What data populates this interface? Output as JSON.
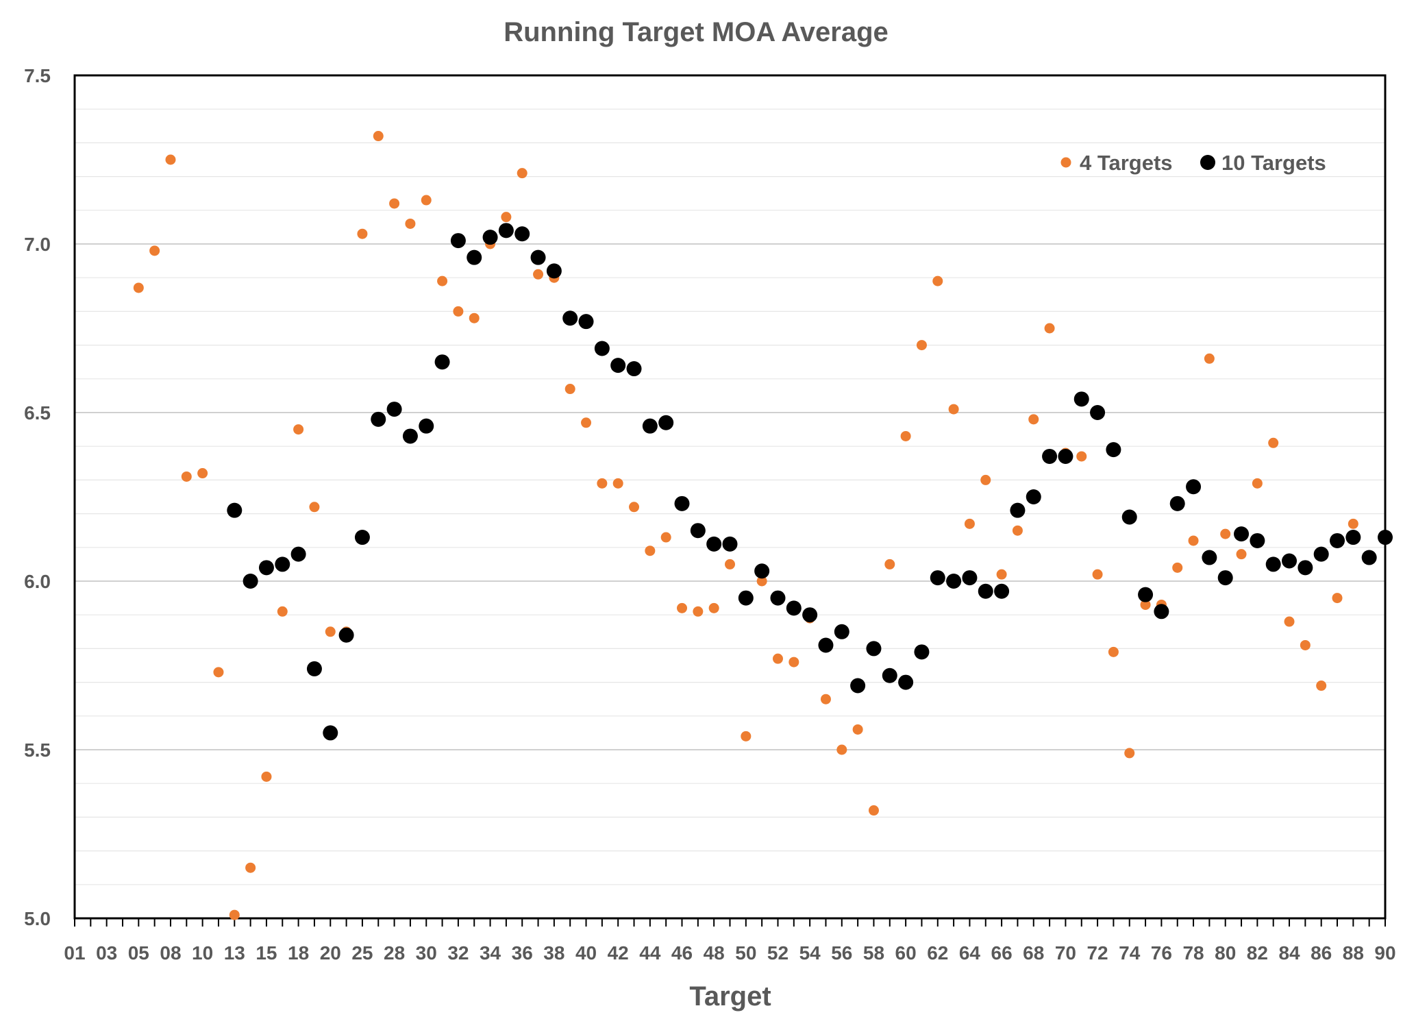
{
  "chart_data": {
    "type": "scatter",
    "title": "Running Target MOA Average",
    "xlabel": "Target",
    "ylabel": "",
    "ylim": [
      5.0,
      7.5
    ],
    "y_ticks": [
      "5.0",
      "5.5",
      "6.0",
      "6.5",
      "7.0",
      "7.5"
    ],
    "x_ticks": [
      "01",
      "03",
      "05",
      "08",
      "10",
      "13",
      "15",
      "18",
      "20",
      "25",
      "28",
      "30",
      "32",
      "34",
      "36",
      "38",
      "40",
      "42",
      "44",
      "46",
      "48",
      "50",
      "52",
      "54",
      "56",
      "58",
      "60",
      "62",
      "64",
      "66",
      "68",
      "70",
      "72",
      "74",
      "76",
      "78",
      "80",
      "82",
      "84",
      "86",
      "88",
      "90"
    ],
    "grid": "horizontal minor",
    "legend": "top-right",
    "series": [
      {
        "name": "4 Targets",
        "color": "#ED7D31",
        "points": [
          [
            4,
            6.87
          ],
          [
            5,
            6.98
          ],
          [
            6,
            7.25
          ],
          [
            7,
            6.31
          ],
          [
            8,
            6.32
          ],
          [
            9,
            5.73
          ],
          [
            10,
            5.01
          ],
          [
            11,
            5.15
          ],
          [
            12,
            5.42
          ],
          [
            13,
            5.91
          ],
          [
            14,
            6.45
          ],
          [
            15,
            6.22
          ],
          [
            16,
            5.85
          ],
          [
            17,
            5.85
          ],
          [
            18,
            7.03
          ],
          [
            19,
            7.32
          ],
          [
            20,
            7.12
          ],
          [
            21,
            7.06
          ],
          [
            22,
            7.13
          ],
          [
            23,
            6.89
          ],
          [
            24,
            6.8
          ],
          [
            25,
            6.78
          ],
          [
            26,
            7.0
          ],
          [
            27,
            7.08
          ],
          [
            28,
            7.21
          ],
          [
            29,
            6.91
          ],
          [
            30,
            6.9
          ],
          [
            31,
            6.57
          ],
          [
            32,
            6.47
          ],
          [
            33,
            6.29
          ],
          [
            34,
            6.29
          ],
          [
            35,
            6.22
          ],
          [
            36,
            6.09
          ],
          [
            37,
            6.13
          ],
          [
            38,
            5.92
          ],
          [
            39,
            5.91
          ],
          [
            40,
            5.92
          ],
          [
            41,
            6.05
          ],
          [
            42,
            5.54
          ],
          [
            43,
            6.0
          ],
          [
            44,
            5.77
          ],
          [
            45,
            5.76
          ],
          [
            46,
            5.89
          ],
          [
            47,
            5.65
          ],
          [
            48,
            5.5
          ],
          [
            49,
            5.56
          ],
          [
            50,
            5.32
          ],
          [
            51,
            6.05
          ],
          [
            52,
            6.43
          ],
          [
            53,
            6.7
          ],
          [
            54,
            6.89
          ],
          [
            55,
            6.51
          ],
          [
            56,
            6.17
          ],
          [
            57,
            6.3
          ],
          [
            58,
            6.02
          ],
          [
            59,
            6.15
          ],
          [
            60,
            6.48
          ],
          [
            61,
            6.75
          ],
          [
            62,
            6.38
          ],
          [
            63,
            6.37
          ],
          [
            64,
            6.02
          ],
          [
            65,
            5.79
          ],
          [
            66,
            5.49
          ],
          [
            67,
            5.93
          ],
          [
            68,
            5.93
          ],
          [
            69,
            6.04
          ],
          [
            70,
            6.12
          ],
          [
            71,
            6.66
          ],
          [
            72,
            6.14
          ],
          [
            73,
            6.08
          ],
          [
            74,
            6.29
          ],
          [
            75,
            6.41
          ],
          [
            76,
            5.88
          ],
          [
            77,
            5.81
          ],
          [
            78,
            5.69
          ],
          [
            79,
            5.95
          ],
          [
            80,
            6.17
          ]
        ]
      },
      {
        "name": "10 Targets",
        "color": "#000000",
        "points": [
          [
            10,
            6.21
          ],
          [
            11,
            6.0
          ],
          [
            12,
            6.04
          ],
          [
            13,
            6.05
          ],
          [
            14,
            6.08
          ],
          [
            15,
            5.74
          ],
          [
            16,
            5.55
          ],
          [
            17,
            5.84
          ],
          [
            18,
            6.13
          ],
          [
            19,
            6.48
          ],
          [
            20,
            6.51
          ],
          [
            21,
            6.43
          ],
          [
            22,
            6.46
          ],
          [
            23,
            6.65
          ],
          [
            24,
            7.01
          ],
          [
            25,
            6.96
          ],
          [
            26,
            7.02
          ],
          [
            27,
            7.04
          ],
          [
            28,
            7.03
          ],
          [
            29,
            6.96
          ],
          [
            30,
            6.92
          ],
          [
            31,
            6.78
          ],
          [
            32,
            6.77
          ],
          [
            33,
            6.69
          ],
          [
            34,
            6.64
          ],
          [
            35,
            6.63
          ],
          [
            36,
            6.46
          ],
          [
            37,
            6.47
          ],
          [
            38,
            6.23
          ],
          [
            39,
            6.15
          ],
          [
            40,
            6.11
          ],
          [
            41,
            6.11
          ],
          [
            42,
            5.95
          ],
          [
            43,
            6.03
          ],
          [
            44,
            5.95
          ],
          [
            45,
            5.92
          ],
          [
            46,
            5.9
          ],
          [
            47,
            5.81
          ],
          [
            48,
            5.85
          ],
          [
            49,
            5.69
          ],
          [
            50,
            5.8
          ],
          [
            51,
            5.72
          ],
          [
            52,
            5.7
          ],
          [
            53,
            5.79
          ],
          [
            54,
            6.01
          ],
          [
            55,
            6.0
          ],
          [
            56,
            6.01
          ],
          [
            57,
            5.97
          ],
          [
            58,
            5.97
          ],
          [
            59,
            6.21
          ],
          [
            60,
            6.25
          ],
          [
            61,
            6.37
          ],
          [
            62,
            6.37
          ],
          [
            63,
            6.54
          ],
          [
            64,
            6.5
          ],
          [
            65,
            6.39
          ],
          [
            66,
            6.19
          ],
          [
            67,
            5.96
          ],
          [
            68,
            5.91
          ],
          [
            69,
            6.23
          ],
          [
            70,
            6.28
          ],
          [
            71,
            6.07
          ],
          [
            72,
            6.01
          ],
          [
            73,
            6.14
          ],
          [
            74,
            6.12
          ],
          [
            75,
            6.05
          ],
          [
            76,
            6.06
          ],
          [
            77,
            6.04
          ],
          [
            78,
            6.08
          ],
          [
            79,
            6.12
          ],
          [
            80,
            6.13
          ],
          [
            81,
            6.07
          ],
          [
            82,
            6.13
          ]
        ]
      }
    ]
  }
}
